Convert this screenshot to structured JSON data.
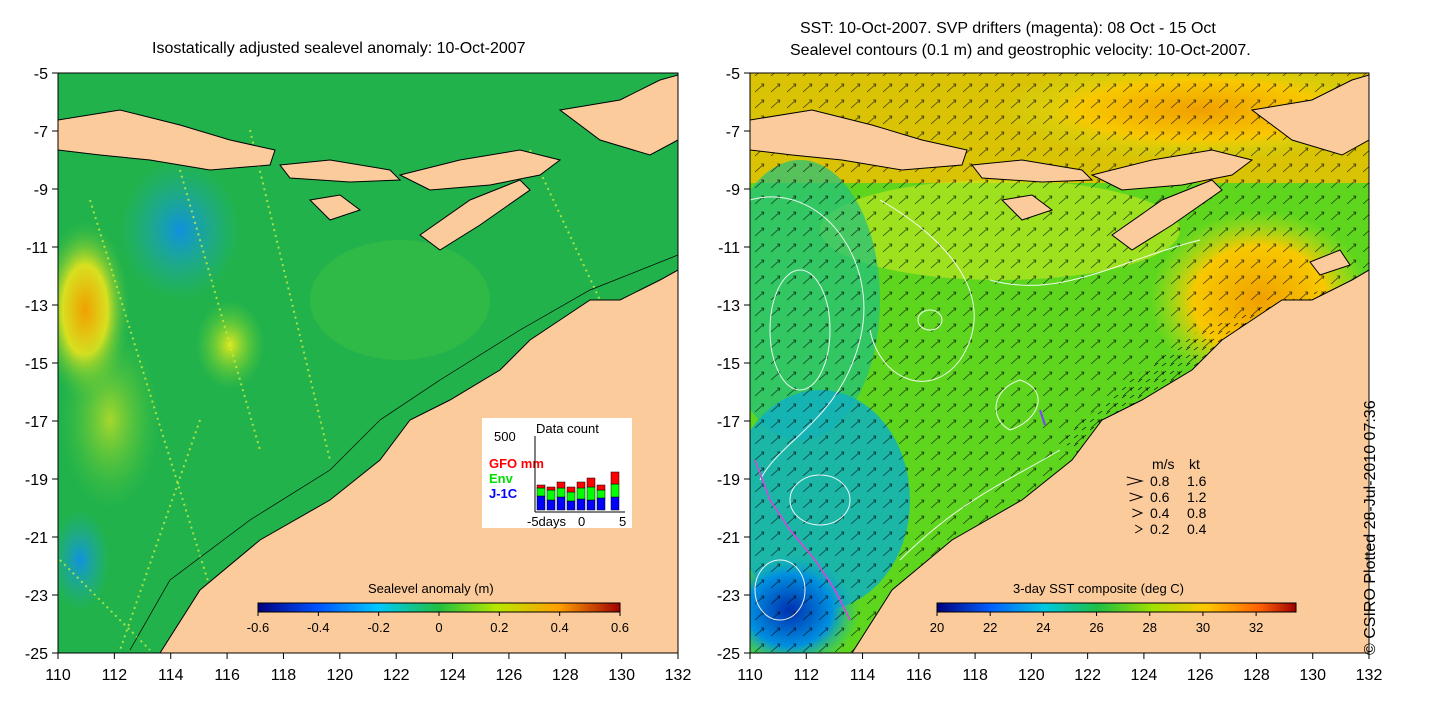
{
  "left_panel": {
    "title": "Isostatically adjusted sealevel anomaly: 10-Oct-2007",
    "y_ticks": [
      "-5",
      "-7",
      "-9",
      "-11",
      "-13",
      "-15",
      "-17",
      "-19",
      "-21",
      "-23",
      "-25"
    ],
    "x_ticks": [
      "110",
      "112",
      "114",
      "116",
      "118",
      "120",
      "122",
      "124",
      "126",
      "128",
      "130",
      "132"
    ],
    "colorbar": {
      "label": "Sealevel anomaly (m)",
      "ticks": [
        "-0.6",
        "-0.4",
        "-0.2",
        "0",
        "0.2",
        "0.4",
        "0.6"
      ],
      "range": [
        -0.6,
        0.6
      ]
    },
    "data_count": {
      "title": "Data count",
      "ymax_label": "500",
      "legend": [
        {
          "name": "GFO mm",
          "color": "#ff0000"
        },
        {
          "name": "Env",
          "color": "#00ff00"
        },
        {
          "name": "J-1C",
          "color": "#0000ff"
        }
      ],
      "x_labels": [
        "-5days",
        "0",
        "5"
      ]
    }
  },
  "right_panel": {
    "title_line1": "SST: 10-Oct-2007. SVP drifters (magenta): 08 Oct - 15 Oct",
    "title_line2": "Sealevel contours (0.1 m) and geostrophic velocity: 10-Oct-2007.",
    "y_ticks": [
      "-5",
      "-7",
      "-9",
      "-11",
      "-13",
      "-15",
      "-17",
      "-19",
      "-21",
      "-23",
      "-25"
    ],
    "x_ticks": [
      "110",
      "112",
      "114",
      "116",
      "118",
      "120",
      "122",
      "124",
      "126",
      "128",
      "130",
      "132"
    ],
    "colorbar": {
      "label": "3-day SST composite (deg C)",
      "ticks": [
        "20",
        "22",
        "24",
        "26",
        "28",
        "30",
        "32"
      ],
      "range": [
        20,
        33.5
      ]
    },
    "velocity_legend": {
      "header_ms": "m/s",
      "header_kt": "kt",
      "rows": [
        {
          "ms": "0.8",
          "kt": "1.6"
        },
        {
          "ms": "0.6",
          "kt": "1.2"
        },
        {
          "ms": "0.4",
          "kt": "0.8"
        },
        {
          "ms": "0.2",
          "kt": "0.4"
        }
      ]
    }
  },
  "credit": "© CSIRO Plotted 28-Jul-2010 07:36",
  "colors": {
    "land": "#fbcb9b",
    "sla_main": "#21b24c",
    "sst_main": "#5ed61e"
  }
}
